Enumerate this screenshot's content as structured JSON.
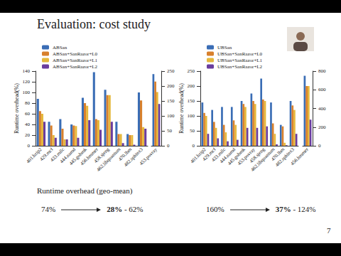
{
  "slide": {
    "title": "Evaluation: cost study",
    "caption": "Runtime overhead (geo-mean)",
    "page": "7"
  },
  "chart_data": [
    {
      "type": "bar",
      "y_label": "Runtime overhead(%)",
      "grid": false,
      "legend": "upper left",
      "categories": [
        "401.bzip2",
        "429.mcf",
        "433.milc",
        "444.namd",
        "445.gobmk",
        "456.hmmer",
        "458.sjeng",
        "462.libquantum",
        "470.lbm",
        "482.sphinx3"
      ],
      "ylim": [
        0,
        140
      ],
      "yticks": [
        0,
        20,
        40,
        60,
        80,
        100,
        120,
        140
      ],
      "y2_categories": [
        "453.povray"
      ],
      "y2lim": [
        0,
        250
      ],
      "y2ticks": [
        0,
        50,
        100,
        150,
        200,
        250
      ],
      "series": [
        {
          "name": "ABSan",
          "color": "#3a6db5",
          "values": [
            88,
            45,
            50,
            40,
            90,
            138,
            105,
            45,
            22,
            100
          ],
          "y2_values": [
            240
          ]
        },
        {
          "name": "ABSan+SanRazor+L0",
          "color": "#d8802c",
          "values": [
            65,
            38,
            32,
            38,
            80,
            50,
            95,
            22,
            20,
            85
          ],
          "y2_values": [
            215
          ]
        },
        {
          "name": "ABSan+SanRazor+L1",
          "color": "#e5b83c",
          "values": [
            60,
            20,
            12,
            37,
            75,
            48,
            95,
            22,
            20,
            35
          ],
          "y2_values": [
            180
          ]
        },
        {
          "name": "ABSan+SanRazor+L2",
          "color": "#6a3d9e",
          "values": [
            45,
            15,
            12,
            15,
            48,
            30,
            45,
            5,
            2,
            32
          ],
          "y2_values": [
            140
          ]
        }
      ],
      "annotation": {
        "from": "74%",
        "to": [
          "28%",
          "- 62%"
        ]
      }
    },
    {
      "type": "bar",
      "y_label": "Runtime overhead(%)",
      "grid": false,
      "legend": "upper left",
      "categories": [
        "401.bzip2",
        "429.mcf",
        "433.milc",
        "444.namd",
        "445.gobmk",
        "453.povray",
        "458.sjeng",
        "462.libquantum",
        "470.lbm",
        "482.sphinx3"
      ],
      "ylim": [
        0,
        250
      ],
      "yticks": [
        0,
        50,
        100,
        150,
        200,
        250
      ],
      "y2_categories": [
        "456.hmmer"
      ],
      "y2lim": [
        0,
        800
      ],
      "y2ticks": [
        0,
        200,
        400,
        600,
        800
      ],
      "series": [
        {
          "name": "UBSan",
          "color": "#3a6db5",
          "values": [
            145,
            120,
            130,
            130,
            150,
            175,
            225,
            145,
            70,
            150
          ],
          "y2_values": [
            750
          ]
        },
        {
          "name": "UBSan+SanRazor+L0",
          "color": "#d8802c",
          "values": [
            110,
            80,
            70,
            85,
            140,
            150,
            155,
            75,
            65,
            135
          ],
          "y2_values": [
            640
          ]
        },
        {
          "name": "UBSan+SanRazor+L1",
          "color": "#e5b83c",
          "values": [
            100,
            60,
            45,
            70,
            130,
            140,
            150,
            40,
            10,
            120
          ],
          "y2_values": [
            640
          ]
        },
        {
          "name": "UBSan+SanRazor+L2",
          "color": "#6a3d9e",
          "values": [
            40,
            25,
            15,
            20,
            60,
            60,
            65,
            5,
            2,
            40
          ],
          "y2_values": [
            280
          ]
        }
      ],
      "annotation": {
        "from": "160%",
        "to": [
          "37%",
          "- 124%"
        ]
      }
    }
  ]
}
